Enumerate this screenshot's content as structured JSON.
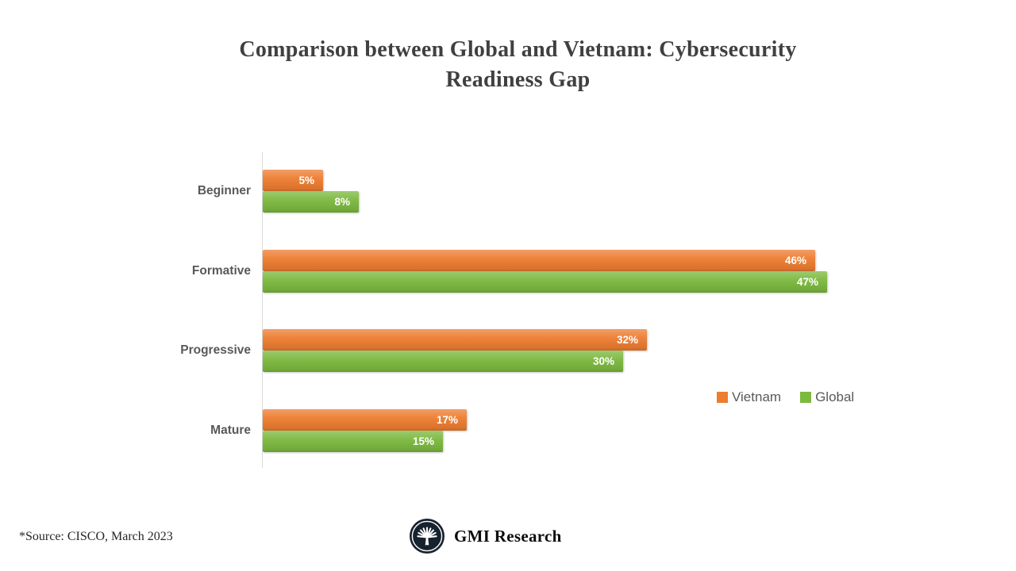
{
  "title": {
    "full": "Comparison between Global and Vietnam: Cybersecurity Readiness Gap",
    "line1": "Comparison between Global and Vietnam: Cybersecurity",
    "line2": "Readiness Gap"
  },
  "legend": [
    {
      "label": "Vietnam",
      "color": "#ED7D31"
    },
    {
      "label": "Global",
      "color": "#7CB93F"
    }
  ],
  "chart_data": {
    "type": "bar",
    "orientation": "horizontal",
    "title": "Comparison between Global and Vietnam: Cybersecurity Readiness Gap",
    "categories": [
      "Beginner",
      "Formative",
      "Progressive",
      "Mature"
    ],
    "series": [
      {
        "name": "Vietnam",
        "color": "#ED7D31",
        "values": [
          5,
          46,
          32,
          17
        ],
        "labels": [
          "5%",
          "46%",
          "32%",
          "17%"
        ]
      },
      {
        "name": "Global",
        "color": "#7CB93F",
        "values": [
          8,
          47,
          30,
          15
        ],
        "labels": [
          "8%",
          "47%",
          "30%",
          "15%"
        ]
      }
    ],
    "value_suffix": "%",
    "xlim": [
      0,
      47
    ],
    "grid": false,
    "axis_labels_visible": false,
    "legend_position": "right-middle"
  },
  "footer": {
    "source_note": "*Source:  CISCO, March 2023",
    "brand_name": "GMI Research"
  },
  "colors": {
    "vietnam": "#ED7D31",
    "global": "#7CB93F",
    "title_text": "#404040",
    "category_text": "#595959",
    "axis_line": "#D9D9D9",
    "logo_circle": "#17222F"
  }
}
